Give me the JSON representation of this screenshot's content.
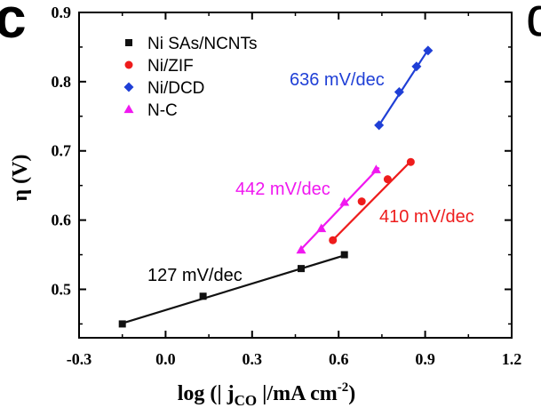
{
  "panel_letter_left": "c",
  "panel_letter_right": "d",
  "chart_data": {
    "type": "scatter",
    "xlabel": "log (| j",
    "xlabel_sub": "CO",
    "xlabel_tail": " |/mA cm",
    "xlabel_sup": "-2",
    "xlabel_close": ")",
    "ylabel": "η (V)",
    "xlim": [
      -0.3,
      1.2
    ],
    "ylim": [
      0.43,
      0.9
    ],
    "xticks": [
      -0.3,
      0.0,
      0.3,
      0.6,
      0.9,
      1.2
    ],
    "xtick_labels": [
      "-0.3",
      "0.0",
      "0.3",
      "0.6",
      "0.9",
      "1.2"
    ],
    "yticks": [
      0.5,
      0.6,
      0.7,
      0.8,
      0.9
    ],
    "ytick_labels": [
      "0.5",
      "0.6",
      "0.7",
      "0.8",
      "0.9"
    ],
    "grid": false,
    "legend_position": "top-left",
    "series": [
      {
        "name": "Ni SAs/NCNTs",
        "color": "#111111",
        "marker": "square",
        "x": [
          -0.15,
          0.13,
          0.47,
          0.62
        ],
        "y": [
          0.45,
          0.49,
          0.53,
          0.55
        ],
        "fit": [
          [
            -0.15,
            0.451
          ],
          [
            0.62,
            0.549
          ]
        ],
        "annotation": "127 mV/dec"
      },
      {
        "name": "Ni/ZIF",
        "color": "#ee1c1c",
        "marker": "circle",
        "x": [
          0.58,
          0.68,
          0.77,
          0.85
        ],
        "y": [
          0.571,
          0.627,
          0.659,
          0.684
        ],
        "fit": [
          [
            0.57,
            0.567
          ],
          [
            0.85,
            0.685
          ]
        ],
        "annotation": "410 mV/dec"
      },
      {
        "name": "Ni/DCD",
        "color": "#1f3fd6",
        "marker": "diamond",
        "x": [
          0.74,
          0.81,
          0.87,
          0.91
        ],
        "y": [
          0.737,
          0.785,
          0.822,
          0.845
        ],
        "fit": [
          [
            0.74,
            0.737
          ],
          [
            0.91,
            0.846
          ]
        ],
        "annotation": "636 mV/dec"
      },
      {
        "name": "N-C",
        "color": "#f018f0",
        "marker": "triangle",
        "x": [
          0.47,
          0.54,
          0.62,
          0.73
        ],
        "y": [
          0.557,
          0.588,
          0.626,
          0.673
        ],
        "fit": [
          [
            0.47,
            0.558
          ],
          [
            0.74,
            0.676
          ]
        ],
        "annotation": "442 mV/dec"
      }
    ]
  }
}
